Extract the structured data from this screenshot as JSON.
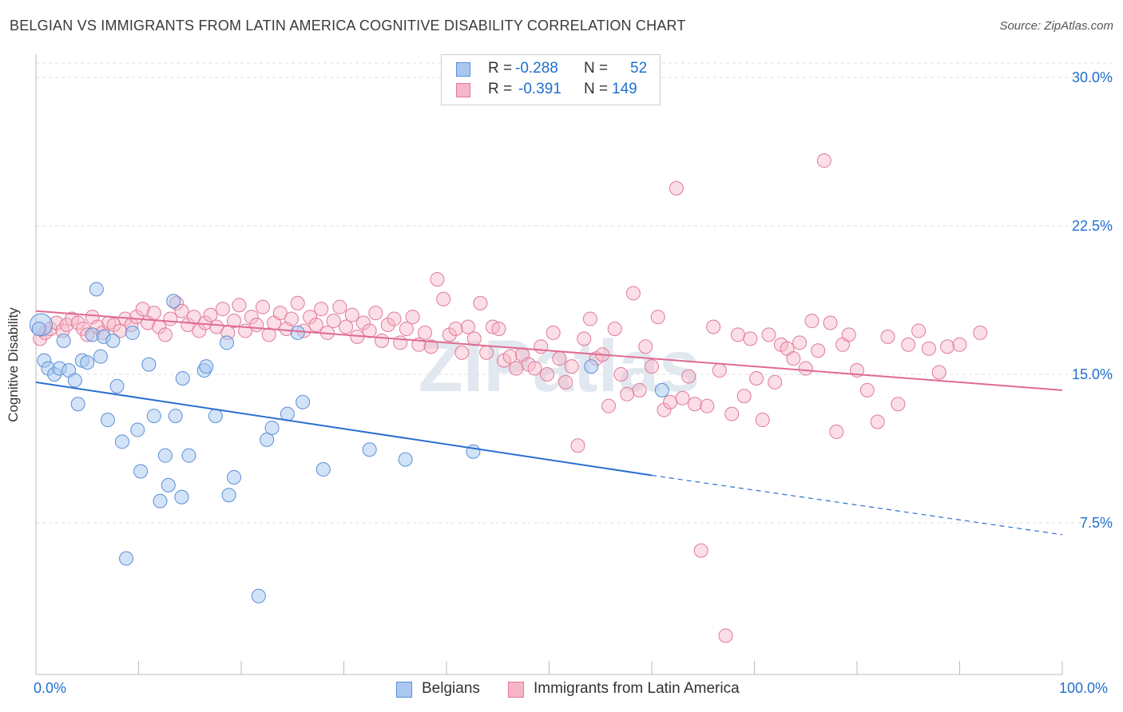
{
  "title": "BELGIAN VS IMMIGRANTS FROM LATIN AMERICA COGNITIVE DISABILITY CORRELATION CHART",
  "source": "Source: ZipAtlas.com",
  "watermark": "ZIPatlas",
  "legend": {
    "rows": [
      {
        "r_label": "R =",
        "r_value": "-0.288",
        "n_label": "N =",
        "n_value": "52",
        "color": "#a8c8f0",
        "border": "#5b8fd6"
      },
      {
        "r_label": "R =",
        "r_value": "-0.391",
        "n_label": "N =",
        "n_value": "149",
        "color": "#f7b6c8",
        "border": "#e07a9a"
      }
    ]
  },
  "bottom_legend": [
    {
      "label": "Belgians",
      "color": "#a8c8f0",
      "border": "#5b8fd6"
    },
    {
      "label": "Immigrants from Latin America",
      "color": "#f7b6c8",
      "border": "#e07a9a"
    }
  ],
  "chart_data": {
    "type": "scatter",
    "title": "BELGIAN VS IMMIGRANTS FROM LATIN AMERICA COGNITIVE DISABILITY CORRELATION CHART",
    "xlabel": "",
    "ylabel": "Cognitive Disability",
    "xlim": [
      0,
      100
    ],
    "ylim": [
      0,
      31.5
    ],
    "x_tick_labels": [
      "0.0%",
      "100.0%"
    ],
    "y_ticks": [
      7.5,
      15.0,
      22.5,
      30.0
    ],
    "y_tick_labels": [
      "7.5%",
      "15.0%",
      "22.5%",
      "30.0%"
    ],
    "grid": true,
    "legend_position": "top-center",
    "colors": {
      "belgians": "#5b8fd6",
      "latin": "#e07a9a",
      "belgians_line": "#2a6fd0",
      "latin_line": "#e06a92"
    },
    "series": [
      {
        "name": "Belgians",
        "r": -0.288,
        "n": 52,
        "trend": {
          "x0": 0,
          "y0": 14.6,
          "x1": 60,
          "y1": 9.9,
          "dash_to_x": 100,
          "dash_to_y": 6.9
        },
        "points": [
          [
            0.5,
            17.5
          ],
          [
            0.8,
            15.7
          ],
          [
            1.2,
            15.3
          ],
          [
            1.8,
            15.0
          ],
          [
            2.3,
            15.3
          ],
          [
            2.7,
            16.7
          ],
          [
            3.2,
            15.2
          ],
          [
            3.8,
            14.7
          ],
          [
            4.1,
            13.5
          ],
          [
            4.5,
            15.7
          ],
          [
            5.0,
            15.6
          ],
          [
            5.5,
            17.0
          ],
          [
            5.9,
            19.3
          ],
          [
            6.3,
            15.9
          ],
          [
            6.6,
            16.9
          ],
          [
            7.0,
            12.7
          ],
          [
            7.5,
            16.7
          ],
          [
            7.9,
            14.4
          ],
          [
            8.4,
            11.6
          ],
          [
            8.8,
            5.7
          ],
          [
            9.4,
            17.1
          ],
          [
            9.9,
            12.2
          ],
          [
            10.2,
            10.1
          ],
          [
            11.0,
            15.5
          ],
          [
            11.5,
            12.9
          ],
          [
            12.1,
            8.6
          ],
          [
            12.6,
            10.9
          ],
          [
            12.9,
            9.4
          ],
          [
            13.4,
            18.7
          ],
          [
            13.6,
            12.9
          ],
          [
            14.2,
            8.8
          ],
          [
            14.3,
            14.8
          ],
          [
            14.9,
            10.9
          ],
          [
            16.4,
            15.2
          ],
          [
            16.6,
            15.4
          ],
          [
            17.5,
            12.9
          ],
          [
            18.6,
            16.6
          ],
          [
            18.8,
            8.9
          ],
          [
            19.3,
            9.8
          ],
          [
            21.7,
            3.8
          ],
          [
            22.5,
            11.7
          ],
          [
            23.0,
            12.3
          ],
          [
            24.5,
            13.0
          ],
          [
            25.5,
            17.1
          ],
          [
            26.0,
            13.6
          ],
          [
            28.0,
            10.2
          ],
          [
            32.5,
            11.2
          ],
          [
            36.0,
            10.7
          ],
          [
            42.6,
            11.1
          ],
          [
            54.1,
            15.4
          ],
          [
            61.0,
            14.2
          ],
          [
            0.3,
            17.3
          ]
        ]
      },
      {
        "name": "Immigrants from Latin America",
        "r": -0.391,
        "n": 149,
        "trend": {
          "x0": 0,
          "y0": 18.2,
          "x1": 100,
          "y1": 14.2
        },
        "points": [
          [
            0.4,
            16.8
          ],
          [
            0.9,
            17.1
          ],
          [
            1.4,
            17.3
          ],
          [
            2.0,
            17.6
          ],
          [
            2.6,
            17.2
          ],
          [
            3.0,
            17.5
          ],
          [
            3.5,
            17.8
          ],
          [
            4.1,
            17.6
          ],
          [
            4.6,
            17.3
          ],
          [
            5.0,
            17.0
          ],
          [
            5.5,
            17.9
          ],
          [
            6.0,
            17.4
          ],
          [
            6.5,
            17.1
          ],
          [
            7.1,
            17.6
          ],
          [
            7.6,
            17.5
          ],
          [
            8.2,
            17.2
          ],
          [
            8.7,
            17.8
          ],
          [
            9.3,
            17.5
          ],
          [
            9.8,
            17.9
          ],
          [
            10.4,
            18.3
          ],
          [
            10.9,
            17.6
          ],
          [
            11.5,
            18.1
          ],
          [
            12.0,
            17.4
          ],
          [
            12.6,
            17.0
          ],
          [
            13.1,
            17.8
          ],
          [
            13.7,
            18.6
          ],
          [
            14.2,
            18.2
          ],
          [
            14.8,
            17.5
          ],
          [
            15.4,
            17.9
          ],
          [
            15.9,
            17.2
          ],
          [
            16.5,
            17.6
          ],
          [
            17.0,
            18.0
          ],
          [
            17.6,
            17.4
          ],
          [
            18.2,
            18.3
          ],
          [
            18.7,
            17.1
          ],
          [
            19.3,
            17.7
          ],
          [
            19.8,
            18.5
          ],
          [
            20.4,
            17.2
          ],
          [
            21.0,
            17.9
          ],
          [
            21.5,
            17.5
          ],
          [
            22.1,
            18.4
          ],
          [
            22.7,
            17.0
          ],
          [
            23.2,
            17.6
          ],
          [
            23.8,
            18.1
          ],
          [
            24.4,
            17.3
          ],
          [
            24.9,
            17.8
          ],
          [
            25.5,
            18.6
          ],
          [
            26.1,
            17.2
          ],
          [
            26.7,
            17.9
          ],
          [
            27.3,
            17.5
          ],
          [
            27.8,
            18.3
          ],
          [
            28.4,
            17.1
          ],
          [
            29.0,
            17.7
          ],
          [
            29.6,
            18.4
          ],
          [
            30.2,
            17.4
          ],
          [
            30.8,
            18.0
          ],
          [
            31.3,
            16.9
          ],
          [
            31.9,
            17.6
          ],
          [
            32.5,
            17.2
          ],
          [
            33.1,
            18.1
          ],
          [
            33.7,
            16.7
          ],
          [
            34.3,
            17.5
          ],
          [
            34.9,
            17.8
          ],
          [
            35.5,
            16.6
          ],
          [
            36.1,
            17.3
          ],
          [
            36.7,
            17.9
          ],
          [
            37.3,
            16.5
          ],
          [
            37.9,
            17.1
          ],
          [
            38.5,
            16.4
          ],
          [
            39.1,
            19.8
          ],
          [
            39.7,
            18.8
          ],
          [
            40.3,
            17.0
          ],
          [
            40.9,
            17.3
          ],
          [
            41.5,
            16.1
          ],
          [
            42.1,
            17.4
          ],
          [
            42.7,
            16.8
          ],
          [
            43.3,
            18.6
          ],
          [
            43.9,
            16.1
          ],
          [
            44.5,
            17.4
          ],
          [
            45.1,
            17.3
          ],
          [
            45.6,
            15.7
          ],
          [
            46.2,
            15.9
          ],
          [
            46.8,
            15.3
          ],
          [
            47.4,
            16.0
          ],
          [
            48.0,
            15.5
          ],
          [
            48.6,
            15.3
          ],
          [
            49.2,
            16.4
          ],
          [
            49.8,
            15.0
          ],
          [
            50.4,
            17.1
          ],
          [
            51.0,
            15.8
          ],
          [
            51.6,
            14.6
          ],
          [
            52.2,
            15.4
          ],
          [
            52.8,
            11.4
          ],
          [
            53.4,
            16.8
          ],
          [
            54.0,
            17.8
          ],
          [
            54.6,
            15.8
          ],
          [
            55.2,
            16.0
          ],
          [
            55.8,
            13.4
          ],
          [
            56.4,
            17.3
          ],
          [
            57.0,
            15.0
          ],
          [
            57.6,
            14.0
          ],
          [
            58.2,
            19.1
          ],
          [
            58.8,
            14.2
          ],
          [
            59.4,
            16.4
          ],
          [
            60.0,
            15.4
          ],
          [
            60.6,
            17.9
          ],
          [
            61.2,
            13.2
          ],
          [
            61.8,
            13.6
          ],
          [
            62.4,
            24.4
          ],
          [
            63.0,
            13.8
          ],
          [
            63.6,
            14.9
          ],
          [
            64.2,
            13.5
          ],
          [
            64.8,
            6.1
          ],
          [
            65.4,
            13.4
          ],
          [
            66.0,
            17.4
          ],
          [
            66.6,
            15.2
          ],
          [
            67.2,
            1.8
          ],
          [
            67.8,
            13.0
          ],
          [
            68.4,
            17.0
          ],
          [
            69.0,
            13.9
          ],
          [
            69.6,
            16.8
          ],
          [
            70.2,
            14.8
          ],
          [
            70.8,
            12.7
          ],
          [
            71.4,
            17.0
          ],
          [
            72.0,
            14.6
          ],
          [
            72.6,
            16.5
          ],
          [
            73.2,
            16.3
          ],
          [
            73.8,
            15.8
          ],
          [
            74.4,
            16.6
          ],
          [
            75.0,
            15.3
          ],
          [
            75.6,
            17.7
          ],
          [
            76.2,
            16.2
          ],
          [
            76.8,
            25.8
          ],
          [
            77.4,
            17.6
          ],
          [
            78.0,
            12.1
          ],
          [
            78.6,
            16.5
          ],
          [
            79.2,
            17.0
          ],
          [
            80.0,
            15.2
          ],
          [
            81.0,
            14.2
          ],
          [
            82.0,
            12.6
          ],
          [
            83.0,
            16.9
          ],
          [
            84.0,
            13.5
          ],
          [
            85.0,
            16.5
          ],
          [
            86.0,
            17.2
          ],
          [
            87.0,
            16.3
          ],
          [
            88.0,
            15.1
          ],
          [
            88.8,
            16.4
          ],
          [
            90.0,
            16.5
          ],
          [
            92.0,
            17.1
          ]
        ]
      }
    ]
  }
}
